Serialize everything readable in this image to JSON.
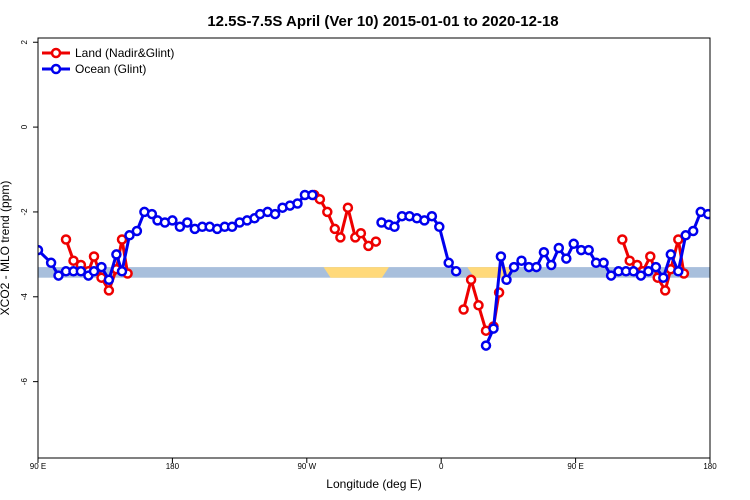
{
  "chart_data": {
    "type": "line",
    "title": "12.5S-7.5S April (Ver 10)   2015-01-01 to 2020-12-18",
    "xlabel": "Longitude (deg E)",
    "ylabel": "XCO2 - MLO trend (ppm)",
    "xlim": [
      90,
      450
    ],
    "ylim": [
      -7.8,
      2.1
    ],
    "x_ticks": [
      {
        "value": 90,
        "label": "90 E"
      },
      {
        "value": 162,
        "label": "180"
      },
      {
        "value": 234,
        "label": "90 W"
      },
      {
        "value": 306,
        "label": "0"
      },
      {
        "value": 378,
        "label": "90 E"
      },
      {
        "value": 450,
        "label": "180"
      }
    ],
    "y_ticks": [
      {
        "value": 2,
        "label": "2"
      },
      {
        "value": 0,
        "label": "0"
      },
      {
        "value": -2,
        "label": "-2"
      },
      {
        "value": -4,
        "label": "-4"
      },
      {
        "value": -6,
        "label": "-6"
      }
    ],
    "legend": {
      "position": "top-left"
    },
    "colors": {
      "land": "#ee0000",
      "ocean": "#0000ee",
      "band": "#a8bfdc",
      "band_highlight": "#ffd97a"
    },
    "band": {
      "y_min": -3.55,
      "y_max": -3.3
    },
    "band_highlights": [
      {
        "x_start": 243,
        "x_end": 278
      },
      {
        "x_start": 320,
        "x_end": 346
      }
    ],
    "series": [
      {
        "name": "Land (Nadir&Glint)",
        "color": "#ee0000",
        "segments": [
          [
            [
              105,
              -2.65
            ],
            [
              109,
              -3.15
            ],
            [
              113,
              -3.25
            ],
            [
              117,
              -3.4
            ],
            [
              120,
              -3.05
            ],
            [
              124,
              -3.55
            ],
            [
              128,
              -3.85
            ],
            [
              132,
              -3.35
            ],
            [
              135,
              -2.65
            ],
            [
              138,
              -3.45
            ]
          ],
          [
            [
              238,
              -1.6
            ],
            [
              241,
              -1.7
            ],
            [
              245,
              -2.0
            ],
            [
              249,
              -2.4
            ],
            [
              252,
              -2.6
            ],
            [
              256,
              -1.9
            ],
            [
              260,
              -2.6
            ],
            [
              263,
              -2.5
            ],
            [
              267,
              -2.8
            ],
            [
              271,
              -2.7
            ]
          ],
          [
            [
              318,
              -4.3
            ],
            [
              322,
              -3.6
            ],
            [
              326,
              -4.2
            ],
            [
              330,
              -4.8
            ],
            [
              334,
              -4.7
            ],
            [
              337,
              -3.9
            ]
          ],
          [
            [
              403,
              -2.65
            ],
            [
              407,
              -3.15
            ],
            [
              411,
              -3.25
            ],
            [
              414,
              -3.4
            ],
            [
              418,
              -3.05
            ],
            [
              422,
              -3.55
            ],
            [
              426,
              -3.85
            ],
            [
              429,
              -3.35
            ],
            [
              433,
              -2.65
            ],
            [
              436,
              -3.45
            ]
          ]
        ]
      },
      {
        "name": "Ocean (Glint)",
        "color": "#0000ee",
        "segments": [
          [
            [
              90,
              -2.9
            ],
            [
              97,
              -3.2
            ],
            [
              101,
              -3.5
            ],
            [
              105,
              -3.4
            ],
            [
              109,
              -3.4
            ],
            [
              113,
              -3.4
            ],
            [
              117,
              -3.5
            ],
            [
              120,
              -3.4
            ],
            [
              124,
              -3.3
            ],
            [
              128,
              -3.6
            ],
            [
              132,
              -3.0
            ],
            [
              135,
              -3.4
            ],
            [
              139,
              -2.55
            ],
            [
              143,
              -2.45
            ],
            [
              147,
              -2.0
            ],
            [
              151,
              -2.05
            ],
            [
              154,
              -2.2
            ],
            [
              158,
              -2.25
            ],
            [
              162,
              -2.2
            ],
            [
              166,
              -2.35
            ],
            [
              170,
              -2.25
            ],
            [
              174,
              -2.4
            ],
            [
              178,
              -2.35
            ],
            [
              182,
              -2.35
            ],
            [
              186,
              -2.4
            ],
            [
              190,
              -2.35
            ],
            [
              194,
              -2.35
            ],
            [
              198,
              -2.25
            ],
            [
              202,
              -2.2
            ],
            [
              206,
              -2.15
            ],
            [
              209,
              -2.05
            ],
            [
              213,
              -2.0
            ],
            [
              217,
              -2.05
            ],
            [
              221,
              -1.9
            ],
            [
              225,
              -1.85
            ],
            [
              229,
              -1.8
            ],
            [
              233,
              -1.6
            ],
            [
              237,
              -1.6
            ]
          ],
          [
            [
              274,
              -2.25
            ],
            [
              278,
              -2.3
            ],
            [
              281,
              -2.35
            ],
            [
              285,
              -2.1
            ],
            [
              289,
              -2.1
            ],
            [
              293,
              -2.15
            ],
            [
              297,
              -2.2
            ],
            [
              301,
              -2.1
            ],
            [
              305,
              -2.35
            ],
            [
              310,
              -3.2
            ],
            [
              314,
              -3.4
            ]
          ],
          [
            [
              330,
              -5.15
            ],
            [
              334,
              -4.75
            ],
            [
              338,
              -3.05
            ],
            [
              341,
              -3.6
            ],
            [
              345,
              -3.3
            ],
            [
              349,
              -3.15
            ],
            [
              353,
              -3.3
            ],
            [
              357,
              -3.3
            ],
            [
              361,
              -2.95
            ],
            [
              365,
              -3.25
            ],
            [
              369,
              -2.85
            ],
            [
              373,
              -3.1
            ],
            [
              377,
              -2.75
            ],
            [
              381,
              -2.9
            ],
            [
              385,
              -2.9
            ],
            [
              389,
              -3.2
            ],
            [
              393,
              -3.2
            ],
            [
              397,
              -3.5
            ],
            [
              401,
              -3.4
            ],
            [
              405,
              -3.4
            ],
            [
              409,
              -3.4
            ],
            [
              413,
              -3.5
            ],
            [
              417,
              -3.4
            ],
            [
              421,
              -3.3
            ],
            [
              425,
              -3.55
            ],
            [
              429,
              -3.0
            ],
            [
              433,
              -3.4
            ],
            [
              437,
              -2.55
            ],
            [
              441,
              -2.45
            ],
            [
              445,
              -2.0
            ],
            [
              449,
              -2.05
            ],
            [
              453,
              -2.2
            ],
            [
              457,
              -2.15
            ],
            [
              461,
              -2.1
            ]
          ]
        ]
      }
    ]
  }
}
